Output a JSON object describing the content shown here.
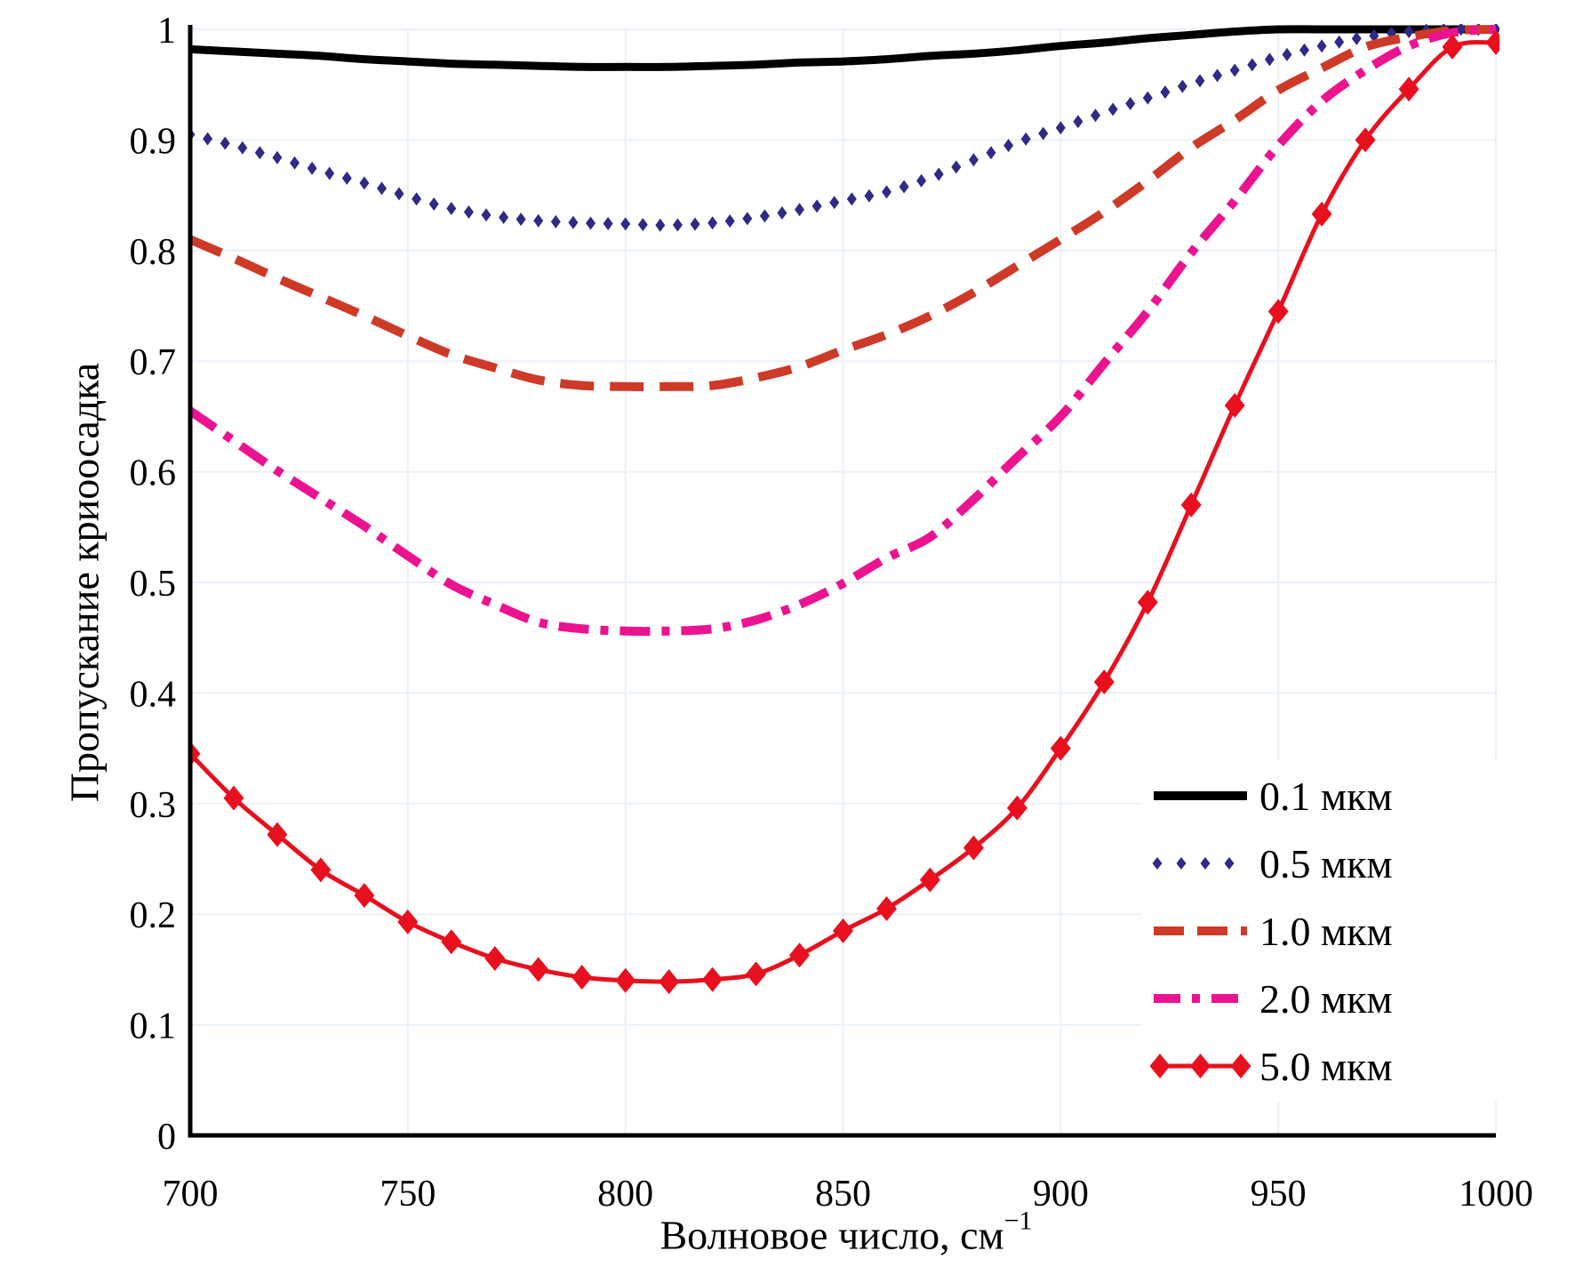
{
  "chart_data": {
    "type": "line",
    "title": "",
    "xlabel": "Волновое число, см⁻¹",
    "xlabel_parts": {
      "base": "Волновое число, см",
      "sup": "−1"
    },
    "ylabel": "Пропускание криоосадка",
    "xlim": [
      700,
      1000
    ],
    "ylim": [
      0,
      1
    ],
    "x_ticks": [
      700,
      750,
      800,
      850,
      900,
      950,
      1000
    ],
    "x_tick_labels": [
      "700",
      "750",
      "800",
      "850",
      "900",
      "950",
      "1000"
    ],
    "y_ticks": [
      0,
      0.1,
      0.2,
      0.3,
      0.4,
      0.5,
      0.6,
      0.7,
      0.8,
      0.9,
      1
    ],
    "y_tick_labels": [
      "0",
      "0.1",
      "0.2",
      "0.3",
      "0.4",
      "0.5",
      "0.6",
      "0.7",
      "0.8",
      "0.9",
      "1"
    ],
    "grid": "very-faint",
    "grid_color": "#e9f0f7",
    "legend_position": "inside-lower-right",
    "x": [
      700,
      710,
      720,
      730,
      740,
      750,
      760,
      770,
      780,
      790,
      800,
      810,
      820,
      830,
      840,
      850,
      860,
      870,
      880,
      890,
      900,
      910,
      920,
      930,
      940,
      950,
      960,
      970,
      980,
      990,
      1000
    ],
    "series": [
      {
        "name": "0.1 мкм",
        "color": "#000000",
        "style": "solid-thick",
        "values": [
          0.982,
          0.98,
          0.978,
          0.976,
          0.973,
          0.971,
          0.969,
          0.968,
          0.967,
          0.966,
          0.966,
          0.966,
          0.967,
          0.968,
          0.97,
          0.971,
          0.973,
          0.976,
          0.978,
          0.981,
          0.985,
          0.988,
          0.992,
          0.995,
          0.998,
          1.0,
          1.0,
          1.0,
          1.0,
          1.0,
          1.0
        ]
      },
      {
        "name": "0.5 мкм",
        "color": "#2f2a85",
        "style": "dotted-diamond",
        "values": [
          0.905,
          0.895,
          0.884,
          0.872,
          0.861,
          0.849,
          0.838,
          0.831,
          0.827,
          0.825,
          0.824,
          0.823,
          0.825,
          0.83,
          0.837,
          0.845,
          0.853,
          0.866,
          0.882,
          0.898,
          0.911,
          0.925,
          0.938,
          0.951,
          0.963,
          0.975,
          0.985,
          0.993,
          0.998,
          1.0,
          1.0
        ]
      },
      {
        "name": "1.0 мкм",
        "color": "#ce3a28",
        "style": "dashed",
        "values": [
          0.81,
          0.793,
          0.775,
          0.758,
          0.741,
          0.723,
          0.706,
          0.694,
          0.683,
          0.678,
          0.677,
          0.677,
          0.678,
          0.685,
          0.695,
          0.71,
          0.724,
          0.741,
          0.762,
          0.786,
          0.81,
          0.835,
          0.863,
          0.893,
          0.918,
          0.945,
          0.965,
          0.984,
          0.993,
          0.999,
          1.0
        ]
      },
      {
        "name": "2.0 мкм",
        "color": "#ec1390",
        "style": "dash-dot",
        "values": [
          0.655,
          0.628,
          0.601,
          0.576,
          0.551,
          0.524,
          0.498,
          0.48,
          0.464,
          0.458,
          0.456,
          0.456,
          0.458,
          0.466,
          0.48,
          0.499,
          0.522,
          0.541,
          0.575,
          0.613,
          0.65,
          0.698,
          0.745,
          0.798,
          0.845,
          0.895,
          0.935,
          0.963,
          0.985,
          0.997,
          1.0
        ]
      },
      {
        "name": "5.0 мкм",
        "color": "#e8101e",
        "style": "solid-diamond-markers",
        "values": [
          0.345,
          0.305,
          0.272,
          0.24,
          0.217,
          0.193,
          0.175,
          0.16,
          0.15,
          0.143,
          0.14,
          0.139,
          0.141,
          0.146,
          0.163,
          0.185,
          0.205,
          0.231,
          0.26,
          0.296,
          0.35,
          0.41,
          0.482,
          0.57,
          0.66,
          0.745,
          0.833,
          0.9,
          0.946,
          0.984,
          0.988
        ]
      }
    ]
  }
}
